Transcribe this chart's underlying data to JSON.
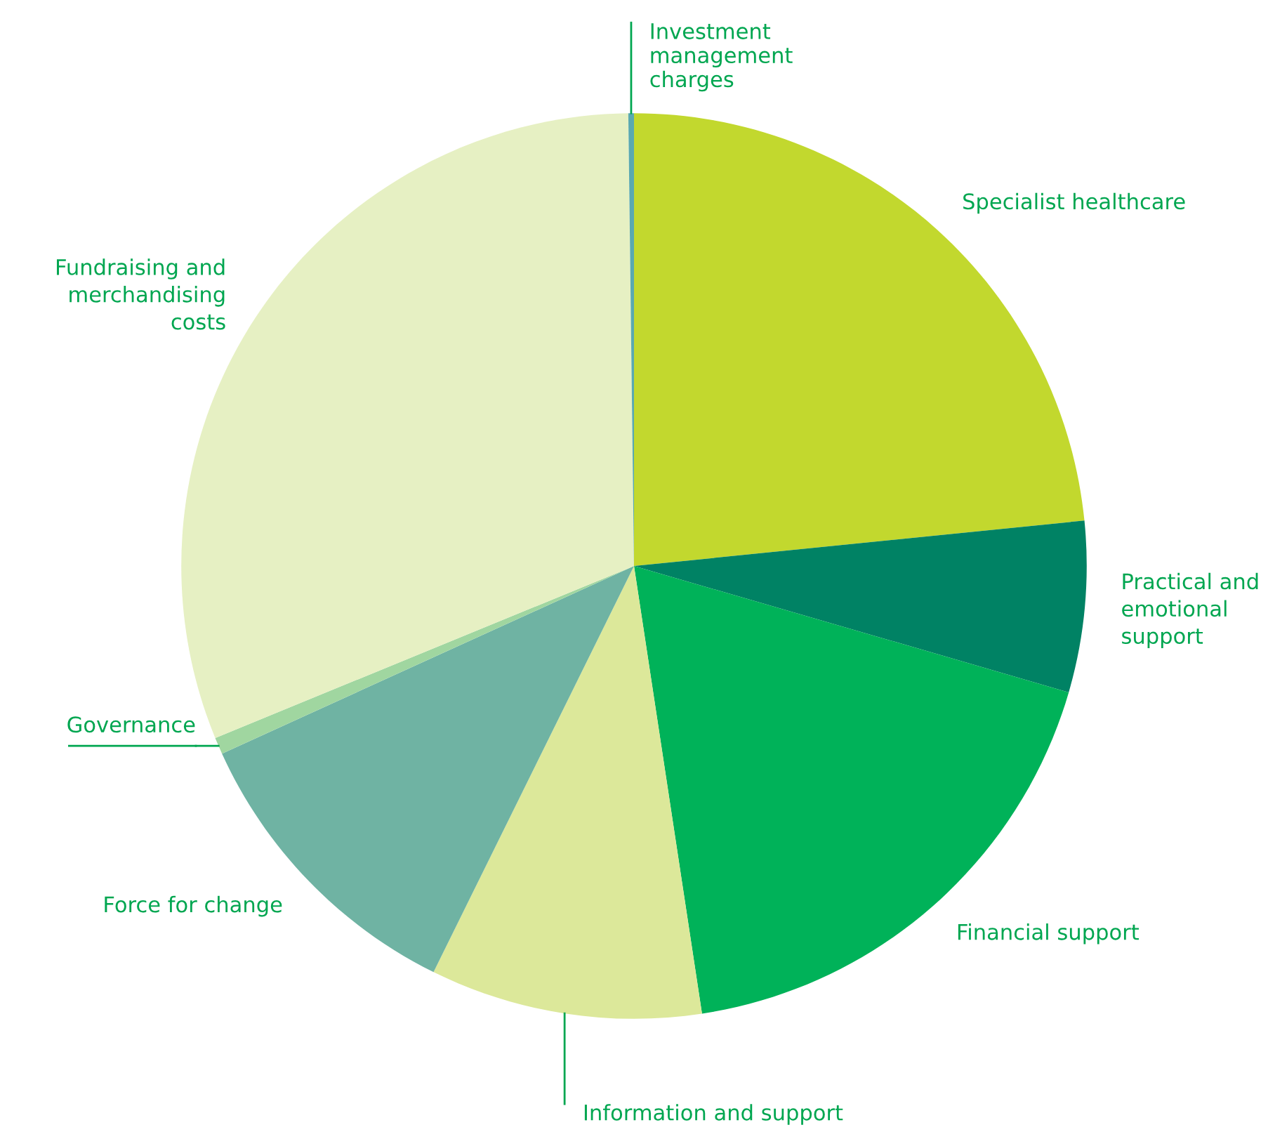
{
  "chart_data": {
    "type": "pie",
    "categories": [
      "Specialist healthcare",
      "Practical and\nemotional\nsupport",
      "Financial support",
      "Information and support",
      "Force for change",
      "Governance",
      "Fundraising and\nmerchandising\ncosts",
      "Investment\nmanagement\ncharges"
    ],
    "values": [
      23.4,
      6.1,
      18.1,
      9.7,
      10.9,
      0.6,
      31.0,
      0.2
    ],
    "colors": [
      "#c2d82e",
      "#008264",
      "#00b259",
      "#dce89a",
      "#6fb3a3",
      "#a0d6a0",
      "#e6f0c3",
      "#5aa9b0"
    ],
    "legend": false
  }
}
